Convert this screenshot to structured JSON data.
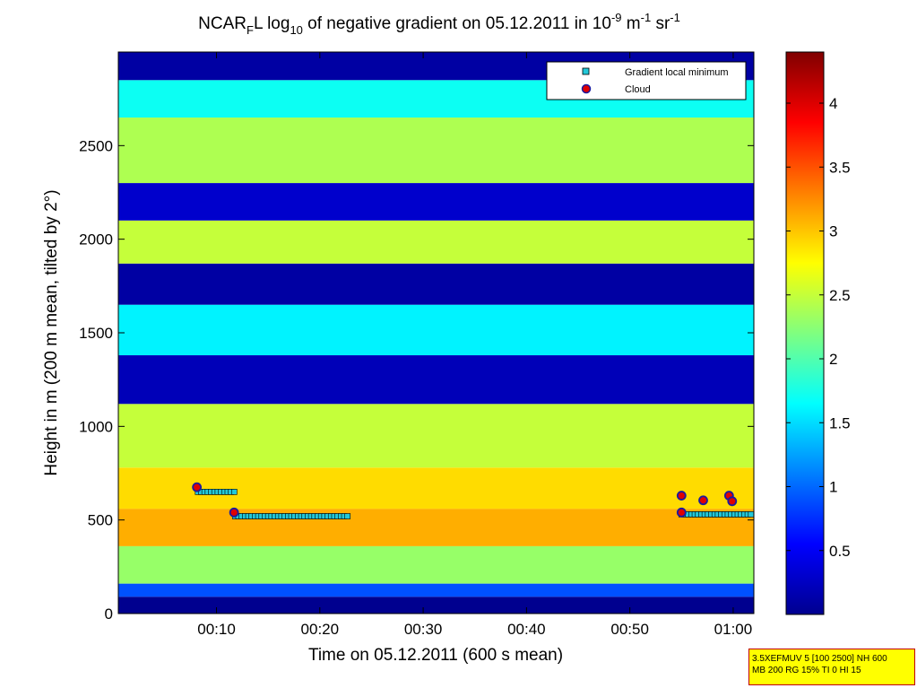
{
  "chart_data": {
    "type": "heatmap",
    "title": {
      "part1": "NCAR",
      "sub1": "F",
      "part2": "L log",
      "sub2": "10",
      "part3": " of negative gradient on 05.12.2011 in 10",
      "sup1": "-9",
      "part4": " m",
      "sup2": "-1",
      "part5": " sr",
      "sup3": "-1"
    },
    "xlabel": "Time on 05.12.2011 (600 s mean)",
    "ylabel": "Height in m (200 m mean, tilted by 2°)",
    "x_ticks": [
      {
        "minute": 10,
        "label": "00:10"
      },
      {
        "minute": 20,
        "label": "00:20"
      },
      {
        "minute": 30,
        "label": "00:30"
      },
      {
        "minute": 40,
        "label": "00:40"
      },
      {
        "minute": 50,
        "label": "00:50"
      },
      {
        "minute": 60,
        "label": "01:00"
      }
    ],
    "y_ticks": [
      0,
      500,
      1000,
      1500,
      2000,
      2500
    ],
    "xlim_minutes": [
      0.5,
      62
    ],
    "ylim": [
      0,
      3000
    ],
    "colorbar": {
      "ticks": [
        "0.5",
        "1",
        "1.5",
        "2",
        "2.5",
        "3",
        "3.5",
        "4"
      ],
      "clim": [
        0,
        4.4
      ],
      "colormap": "jet"
    },
    "legend": {
      "position": "top-right",
      "entries": [
        {
          "label": "Gradient local minimum",
          "marker": "square",
          "color": "#22c8d8"
        },
        {
          "label": "Cloud",
          "marker": "circle",
          "color": "#e00000"
        }
      ]
    },
    "gradient_local_minimum": [
      {
        "from": 8.2,
        "to": 11.8,
        "height": 650
      },
      {
        "from": 11.8,
        "to": 22.8,
        "height": 520
      },
      {
        "from": 55.0,
        "to": 62.0,
        "height": 530
      }
    ],
    "cloud_points": [
      {
        "minute": 8.1,
        "height": 675
      },
      {
        "minute": 11.7,
        "height": 540
      },
      {
        "minute": 55.0,
        "height": 630
      },
      {
        "minute": 55.0,
        "height": 540
      },
      {
        "minute": 57.1,
        "height": 605
      },
      {
        "minute": 59.6,
        "height": 630
      },
      {
        "minute": 59.9,
        "height": 600
      }
    ],
    "layers": [
      {
        "range": [
          0,
          90
        ],
        "level": 0.0
      },
      {
        "range": [
          90,
          160
        ],
        "level": 0.9
      },
      {
        "range": [
          160,
          360
        ],
        "level": 2.3
      },
      {
        "range": [
          360,
          560
        ],
        "level": 3.1
      },
      {
        "range": [
          560,
          780
        ],
        "level": 2.9
      },
      {
        "range": [
          780,
          1120
        ],
        "level": 2.5
      },
      {
        "range": [
          1120,
          1380
        ],
        "level": 0.2
      },
      {
        "range": [
          1380,
          1650
        ],
        "level": 1.6
      },
      {
        "range": [
          1650,
          1870
        ],
        "level": 0.1
      },
      {
        "range": [
          1870,
          2100
        ],
        "level": 2.5
      },
      {
        "range": [
          2100,
          2300
        ],
        "level": 0.3
      },
      {
        "range": [
          2300,
          2650
        ],
        "level": 2.4
      },
      {
        "range": [
          2650,
          2850
        ],
        "level": 1.7
      },
      {
        "range": [
          2850,
          3000
        ],
        "level": 0.1
      }
    ]
  },
  "info_box": {
    "line1": "3.5XEFMUV 5 [100 2500] NH 600",
    "line2": "MB 200 RG 15% TI 0 HI 15"
  }
}
